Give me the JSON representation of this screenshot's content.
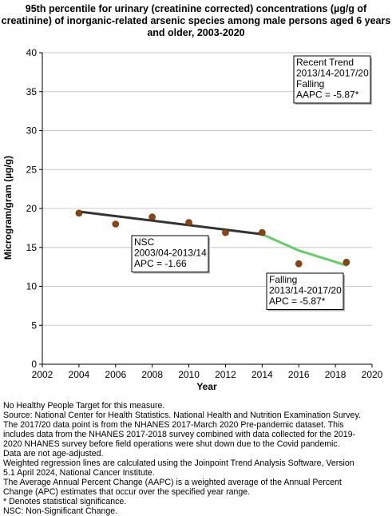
{
  "title_lines": [
    "95th percentile for urinary (creatinine corrected) concentrations (µg/g of",
    "creatinine) of inorganic-related arsenic species among male persons aged 6 years",
    "and older, 2003-2020"
  ],
  "footnotes": [
    "No Healthy People Target for this measure.",
    "Source: National Center for Health Statistics. National Health and Nutrition Examination Survey.",
    "The 2017/20 data point is from the NHANES 2017-March 2020 Pre-pandemic dataset. This",
    "includes data from the NHANES 2017-2018 survey combined with data collected for the 2019-",
    "2020 NHANES survey before field operations were shut down due to the Covid pandemic.",
    "Data are not age-adjusted.",
    "Weighted regression lines are calculated using the Joinpoint Trend Analysis Software, Version",
    "5.1 April 2024, National Cancer Institute.",
    "The Average Annual Percent Change (AAPC) is a weighted average of the Annual Percent",
    "Change (APC) estimates that occur over the specified year range.",
    "* Denotes statistical significance.",
    "NSC: Non-Significant Change."
  ],
  "chart_data": {
    "type": "scatter",
    "xlabel": "Year",
    "ylabel": "Microgram/gram (µg/g)",
    "xlim": [
      2002,
      2020
    ],
    "ylim": [
      0,
      40
    ],
    "x_ticks": [
      "2002",
      "2004",
      "2006",
      "2008",
      "2010",
      "2012",
      "2014",
      "2016",
      "2018",
      "2020"
    ],
    "y_ticks": [
      "0",
      "5",
      "10",
      "15",
      "20",
      "25",
      "30",
      "35",
      "40"
    ],
    "grid": true,
    "points": {
      "x": [
        2004,
        2006,
        2008,
        2010,
        2012,
        2014,
        2016,
        2018.6
      ],
      "y": [
        19.4,
        18.0,
        18.9,
        18.2,
        16.9,
        16.9,
        12.9,
        13.1
      ],
      "color": "#8B4513"
    },
    "series": [
      {
        "name": "NSC",
        "x": [
          2004,
          2014
        ],
        "y": [
          19.6,
          16.7
        ],
        "color": "#333333"
      },
      {
        "name": "Falling",
        "x": [
          2014,
          2016,
          2018.6
        ],
        "y": [
          16.7,
          14.6,
          12.7
        ],
        "color": "#66CC66"
      }
    ],
    "annotations": [
      {
        "lines": [
          "NSC",
          "2003/04-2013/14",
          "APC = -1.66"
        ]
      },
      {
        "lines": [
          "Falling",
          "2013/14-2017/20",
          "APC = -5.87*"
        ]
      },
      {
        "lines": [
          "Recent Trend",
          "2013/14-2017/20",
          "Falling",
          "AAPC = -5.87*"
        ]
      }
    ]
  }
}
